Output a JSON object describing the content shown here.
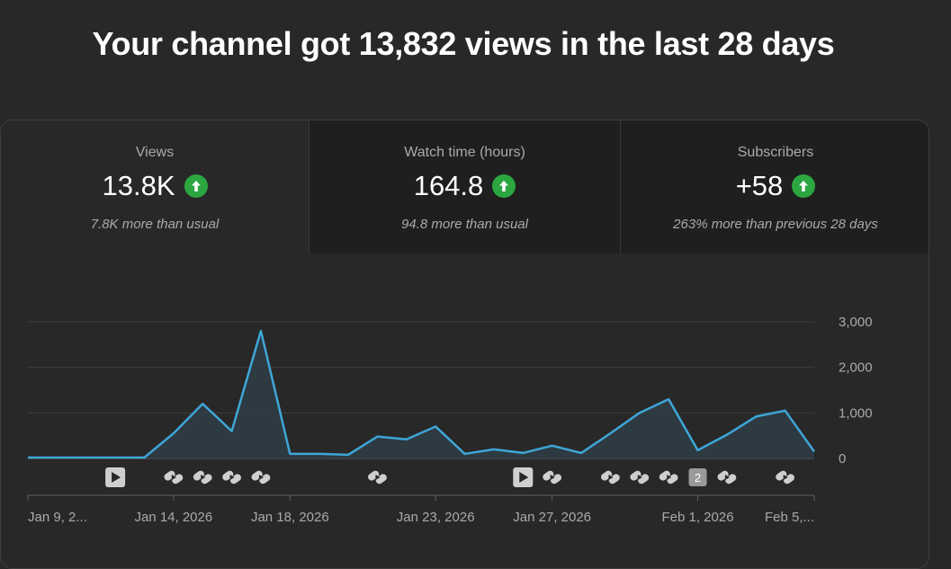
{
  "headline": "Your channel got 13,832 views in the last 28 days",
  "tabs": [
    {
      "label": "Views",
      "value": "13.8K",
      "note": "7.8K more than usual",
      "trend": "up"
    },
    {
      "label": "Watch time (hours)",
      "value": "164.8",
      "note": "94.8 more than usual",
      "trend": "up"
    },
    {
      "label": "Subscribers",
      "value": "+58",
      "note": "263% more than previous 28 days",
      "trend": "up"
    }
  ],
  "colors": {
    "line": "#3ea6d7",
    "area": "#2e3d46",
    "up": "#2ba640",
    "grid": "#3d3d3d",
    "axis_text": "#aaaaaa"
  },
  "chart_data": {
    "type": "line",
    "series": [
      {
        "values": [
          20,
          20,
          20,
          20,
          20,
          550,
          1200,
          600,
          2800,
          100,
          100,
          80,
          480,
          420,
          700,
          100,
          200,
          120,
          280,
          120,
          550,
          1000,
          1300,
          180,
          520,
          920,
          1050,
          150
        ]
      }
    ],
    "x_tick_labels": [
      "Jan 9, 2...",
      "Jan 14, 2026",
      "Jan 18, 2026",
      "Jan 23, 2026",
      "Jan 27, 2026",
      "Feb 1, 2026",
      "Feb 5,..."
    ],
    "x_tick_index": [
      0,
      5,
      9,
      14,
      18,
      23,
      27
    ],
    "y_tick_labels": [
      "3,000",
      "2,000",
      "1,000",
      "0"
    ],
    "y_tick_values": [
      3000,
      2000,
      1000,
      0
    ],
    "ylim": [
      0,
      3000
    ],
    "grid": true,
    "markers": [
      {
        "index": 3,
        "kind": "video",
        "label": ""
      },
      {
        "index": 5,
        "kind": "short",
        "label": ""
      },
      {
        "index": 6,
        "kind": "short",
        "label": ""
      },
      {
        "index": 7,
        "kind": "short",
        "label": ""
      },
      {
        "index": 8,
        "kind": "short",
        "label": ""
      },
      {
        "index": 12,
        "kind": "short",
        "label": ""
      },
      {
        "index": 17,
        "kind": "video",
        "label": ""
      },
      {
        "index": 18,
        "kind": "short",
        "label": ""
      },
      {
        "index": 20,
        "kind": "short",
        "label": ""
      },
      {
        "index": 21,
        "kind": "short",
        "label": ""
      },
      {
        "index": 22,
        "kind": "short",
        "label": ""
      },
      {
        "index": 23,
        "kind": "count",
        "label": "2"
      },
      {
        "index": 24,
        "kind": "short",
        "label": ""
      },
      {
        "index": 26,
        "kind": "short",
        "label": ""
      }
    ]
  }
}
